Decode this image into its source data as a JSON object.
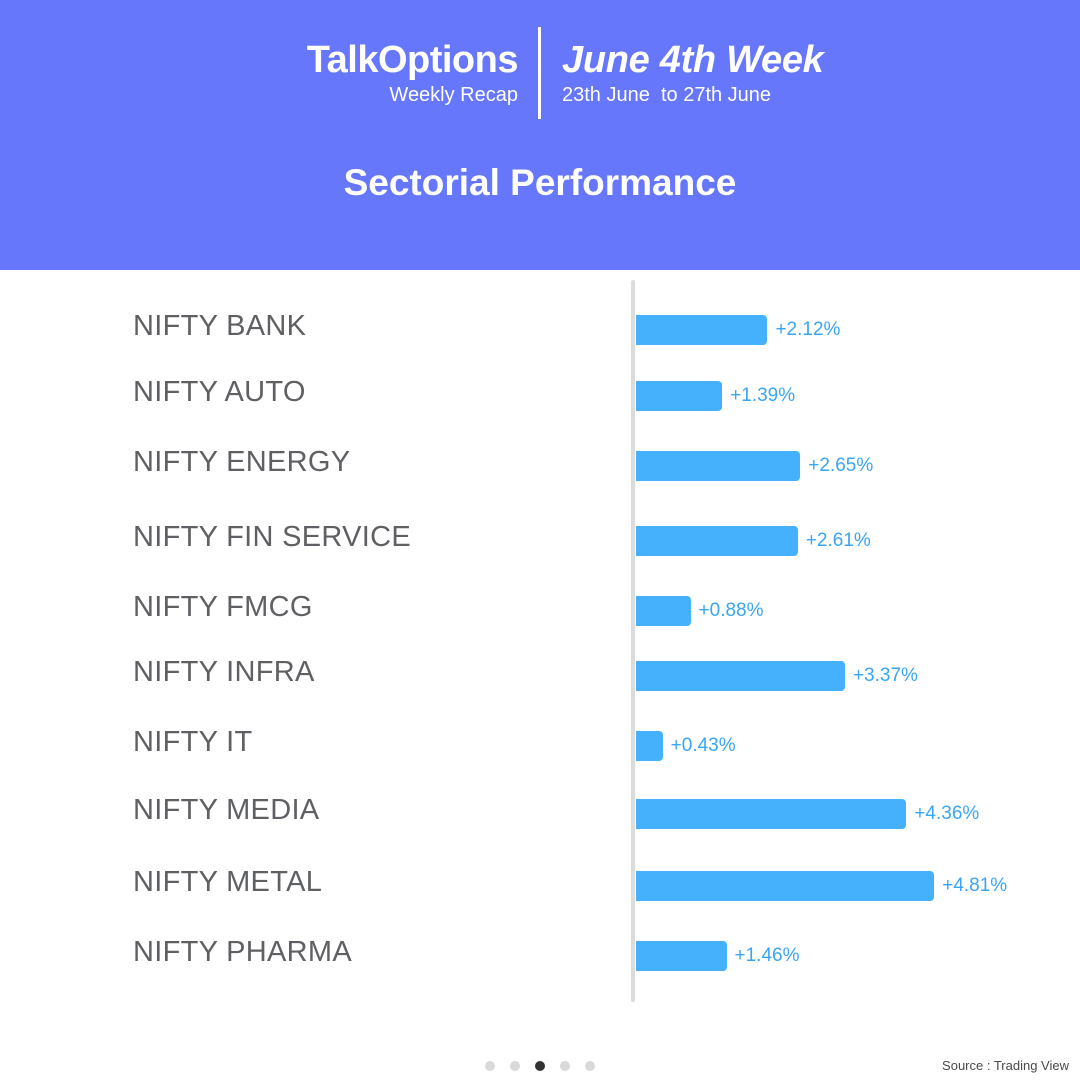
{
  "header": {
    "brand": "TalkOptions",
    "brand_sub": "Weekly Recap",
    "week_title": "June 4th Week",
    "week_range": "23th June  to 27th June",
    "section_title": "Sectorial Performance",
    "bg_color": "#6677fb"
  },
  "chart_data": {
    "type": "bar",
    "orientation": "horizontal",
    "categories": [
      "NIFTY BANK",
      "NIFTY AUTO",
      "NIFTY ENERGY",
      "NIFTY FIN SERVICE",
      "NIFTY FMCG",
      "NIFTY INFRA",
      "NIFTY IT",
      "NIFTY MEDIA",
      "NIFTY METAL",
      "NIFTY PHARMA"
    ],
    "values": [
      2.12,
      1.39,
      2.65,
      2.61,
      0.88,
      3.37,
      0.43,
      4.36,
      4.81,
      1.46
    ],
    "value_labels": [
      "+2.12%",
      "+1.39%",
      "+2.65%",
      "+2.61%",
      "+0.88%",
      "+3.37%",
      "+0.43%",
      "+4.36%",
      "+4.81%",
      "+1.46%"
    ],
    "bar_color": "#45b1fd",
    "label_color": "#3aa5f3",
    "grid": false
  },
  "pagination": {
    "count": 5,
    "active": 2
  },
  "source": "Source : Trading View"
}
